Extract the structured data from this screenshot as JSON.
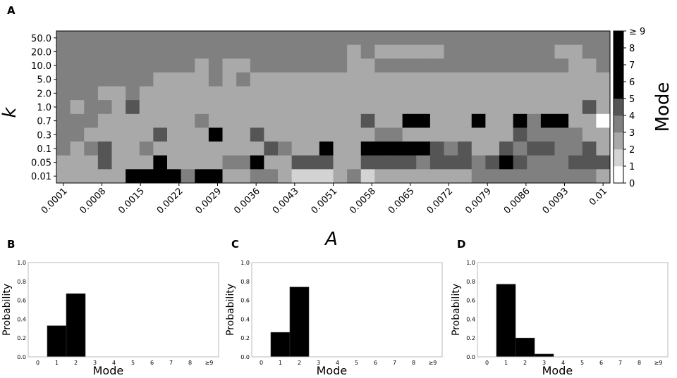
{
  "panel_letters": [
    "A",
    "B",
    "C",
    "D"
  ],
  "chart_data": [
    {
      "panel": "A",
      "type": "heatmap",
      "xlabel": "A",
      "ylabel": "k",
      "x_tick_labels": [
        "0.0001",
        "0.0008",
        "0.0015",
        "0.0022",
        "0.0029",
        "0.0036",
        "0.0043",
        "0.0051",
        "0.0058",
        "0.0065",
        "0.0072",
        "0.0079",
        "0.0086",
        "0.0093",
        "0.01"
      ],
      "y_tick_labels": [
        "50.0",
        "20.0",
        "10.0",
        "5.0",
        "2.0",
        "1.0",
        "0.7",
        "0.3",
        "0.1",
        "0.05",
        "0.01"
      ],
      "n_columns": 40,
      "colorbar": {
        "label": "Mode",
        "tick_labels": [
          "0",
          "1",
          "2",
          "3",
          "4",
          "5",
          "6",
          "7",
          "8",
          "≥ 9"
        ],
        "range": [
          0,
          9
        ],
        "colors": [
          "#ffffff",
          "#d3d3d3",
          "#a9a9a9",
          "#808080",
          "#555555",
          "#000000",
          "#000000",
          "#000000",
          "#000000"
        ]
      },
      "grid": false,
      "rows": [
        "3333333333333333333333333333333333333333",
        "3333333333333333333332322222333333332233",
        "3333333333232233333332233333333333333223",
        "3333333222232322222222222222222222222222",
        "3332232222222222222222222222222222222222",
        "3233242222222222222222222222222222222242",
        "3332222222222222222222222222222222222222",
        "3322222222222222222222222222222222222222",
        "3222222222222222222222222222222222222222",
        "2222222222222222222222222222222222222222",
        "2222222222222222222222222222222222222222"
      ],
      "overrides": [
        [
          6,
          10,
          3
        ],
        [
          6,
          25,
          5
        ],
        [
          6,
          26,
          5
        ],
        [
          6,
          30,
          5
        ],
        [
          6,
          33,
          5
        ],
        [
          6,
          34,
          3
        ],
        [
          6,
          35,
          5
        ],
        [
          6,
          36,
          5
        ],
        [
          6,
          22,
          4
        ],
        [
          6,
          39,
          0
        ],
        [
          7,
          7,
          4
        ],
        [
          7,
          11,
          5
        ],
        [
          7,
          14,
          4
        ],
        [
          7,
          23,
          3
        ],
        [
          7,
          24,
          3
        ],
        [
          7,
          33,
          4
        ],
        [
          7,
          34,
          3
        ],
        [
          7,
          35,
          3
        ],
        [
          7,
          36,
          3
        ],
        [
          7,
          37,
          3
        ],
        [
          8,
          2,
          3
        ],
        [
          8,
          3,
          4
        ],
        [
          8,
          6,
          3
        ],
        [
          8,
          15,
          4
        ],
        [
          8,
          16,
          3
        ],
        [
          8,
          19,
          5
        ],
        [
          8,
          22,
          5
        ],
        [
          8,
          23,
          5
        ],
        [
          8,
          24,
          5
        ],
        [
          8,
          25,
          5
        ],
        [
          8,
          26,
          5
        ],
        [
          8,
          27,
          4
        ],
        [
          8,
          28,
          3
        ],
        [
          8,
          29,
          4
        ],
        [
          8,
          32,
          4
        ],
        [
          8,
          33,
          3
        ],
        [
          8,
          34,
          4
        ],
        [
          8,
          35,
          4
        ],
        [
          8,
          36,
          3
        ],
        [
          8,
          37,
          3
        ],
        [
          8,
          38,
          4
        ],
        [
          9,
          3,
          4
        ],
        [
          9,
          7,
          5
        ],
        [
          9,
          12,
          3
        ],
        [
          9,
          13,
          3
        ],
        [
          9,
          14,
          5
        ],
        [
          9,
          17,
          4
        ],
        [
          9,
          18,
          4
        ],
        [
          9,
          19,
          4
        ],
        [
          9,
          22,
          4
        ],
        [
          9,
          23,
          4
        ],
        [
          9,
          24,
          4
        ],
        [
          9,
          25,
          4
        ],
        [
          9,
          26,
          3
        ],
        [
          9,
          27,
          4
        ],
        [
          9,
          28,
          4
        ],
        [
          9,
          29,
          4
        ],
        [
          9,
          30,
          3
        ],
        [
          9,
          31,
          4
        ],
        [
          9,
          32,
          5
        ],
        [
          9,
          33,
          4
        ],
        [
          9,
          34,
          3
        ],
        [
          9,
          35,
          3
        ],
        [
          9,
          36,
          3
        ],
        [
          9,
          37,
          4
        ],
        [
          9,
          38,
          4
        ],
        [
          9,
          39,
          4
        ],
        [
          10,
          5,
          5
        ],
        [
          10,
          6,
          5
        ],
        [
          10,
          7,
          5
        ],
        [
          10,
          8,
          5
        ],
        [
          10,
          9,
          3
        ],
        [
          10,
          10,
          5
        ],
        [
          10,
          11,
          5
        ],
        [
          10,
          14,
          3
        ],
        [
          10,
          15,
          3
        ],
        [
          10,
          17,
          1
        ],
        [
          10,
          18,
          1
        ],
        [
          10,
          19,
          1
        ],
        [
          10,
          21,
          3
        ],
        [
          10,
          22,
          1
        ],
        [
          10,
          30,
          3
        ],
        [
          10,
          31,
          3
        ],
        [
          10,
          32,
          3
        ],
        [
          10,
          33,
          3
        ],
        [
          10,
          34,
          3
        ],
        [
          10,
          35,
          3
        ],
        [
          10,
          36,
          3
        ],
        [
          10,
          37,
          3
        ],
        [
          10,
          38,
          3
        ]
      ]
    },
    {
      "panel": "B",
      "type": "bar",
      "xlabel": "Mode",
      "ylabel": "Probability",
      "categories": [
        "0",
        "1",
        "2",
        "3",
        "4",
        "5",
        "6",
        "7",
        "8",
        "≥9"
      ],
      "values": [
        0,
        0.33,
        0.67,
        0,
        0,
        0,
        0,
        0,
        0,
        0
      ],
      "ylim": [
        0,
        1.0
      ],
      "y_tick_labels": [
        "0.0",
        "0.2",
        "0.4",
        "0.6",
        "0.8",
        "1.0"
      ]
    },
    {
      "panel": "C",
      "type": "bar",
      "xlabel": "Mode",
      "ylabel": "Probability",
      "categories": [
        "0",
        "1",
        "2",
        "3",
        "4",
        "5",
        "6",
        "7",
        "8",
        "≥9"
      ],
      "values": [
        0,
        0.26,
        0.74,
        0,
        0,
        0,
        0,
        0,
        0,
        0
      ],
      "ylim": [
        0,
        1.0
      ],
      "y_tick_labels": [
        "0.0",
        "0.2",
        "0.4",
        "0.6",
        "0.8",
        "1.0"
      ]
    },
    {
      "panel": "D",
      "type": "bar",
      "xlabel": "Mode",
      "ylabel": "Probability",
      "categories": [
        "0",
        "1",
        "2",
        "3",
        "4",
        "5",
        "6",
        "7",
        "8",
        "≥9"
      ],
      "values": [
        0,
        0.77,
        0.2,
        0.03,
        0,
        0,
        0,
        0,
        0,
        0
      ],
      "ylim": [
        0,
        1.0
      ],
      "y_tick_labels": [
        "0.0",
        "0.2",
        "0.4",
        "0.6",
        "0.8",
        "1.0"
      ]
    }
  ]
}
